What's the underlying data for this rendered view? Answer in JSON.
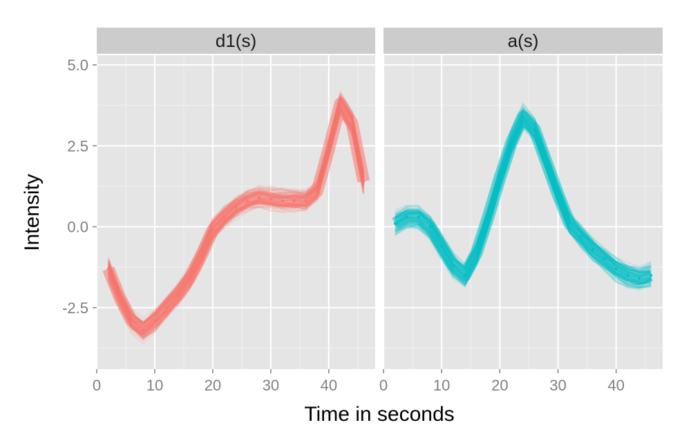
{
  "chart_data": {
    "type": "line",
    "xlabel": "Time in seconds",
    "ylabel": "Intensity",
    "xlim": [
      0,
      48
    ],
    "ylim": [
      -4.4,
      5.3
    ],
    "x_ticks": [
      0,
      10,
      20,
      30,
      40
    ],
    "y_ticks": [
      5.0,
      2.5,
      0.0,
      -2.5
    ],
    "y_tick_labels": [
      "5.0",
      "2.5",
      "0.0",
      "-2.5"
    ],
    "x_tick_labels": [
      "0",
      "10",
      "20",
      "30",
      "40"
    ],
    "grid": true,
    "legend": "none",
    "facets": [
      {
        "strip": "d1(s)",
        "color": "#F8766D",
        "band_halfwidth": 0.35,
        "series": [
          {
            "x": [
              2,
              4,
              6,
              8,
              10,
              12,
              14,
              16,
              18,
              20,
              22,
              24,
              26,
              28,
              30,
              32,
              34,
              36,
              38,
              40,
              42,
              44,
              46
            ],
            "values": [
              -1.3,
              -2.2,
              -2.9,
              -3.2,
              -2.9,
              -2.5,
              -2.1,
              -1.6,
              -0.9,
              -0.1,
              0.3,
              0.6,
              0.8,
              0.9,
              0.85,
              0.8,
              0.8,
              0.8,
              1.1,
              2.4,
              3.8,
              3.2,
              1.4
            ]
          }
        ]
      },
      {
        "strip": "a(s)",
        "color": "#00BFC4",
        "band_halfwidth": 0.35,
        "series": [
          {
            "x": [
              2,
              4,
              6,
              8,
              10,
              12,
              14,
              16,
              18,
              20,
              22,
              24,
              26,
              28,
              30,
              32,
              34,
              36,
              38,
              40,
              42,
              44,
              46
            ],
            "values": [
              0.1,
              0.3,
              0.3,
              0.0,
              -0.6,
              -1.2,
              -1.5,
              -0.8,
              0.3,
              1.5,
              2.6,
              3.4,
              3.0,
              2.0,
              1.0,
              0.1,
              -0.3,
              -0.7,
              -1.0,
              -1.3,
              -1.5,
              -1.6,
              -1.5
            ]
          }
        ]
      }
    ]
  }
}
